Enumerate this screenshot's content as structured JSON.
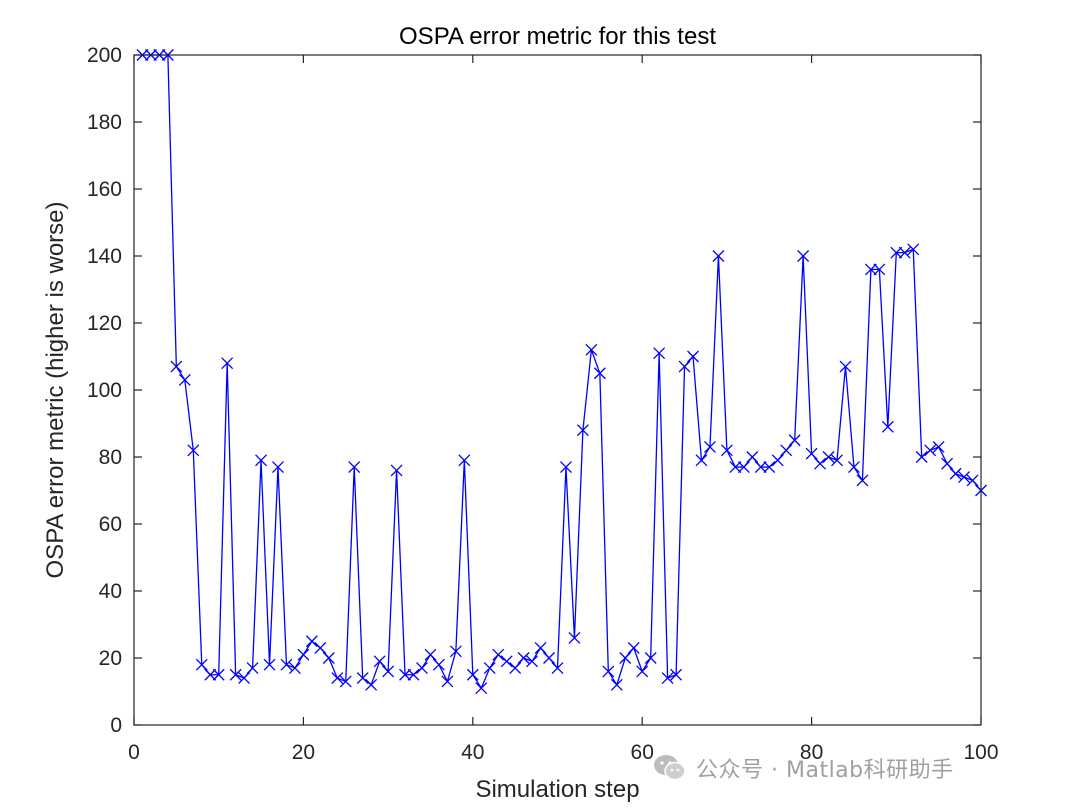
{
  "chart_data": {
    "type": "line",
    "title": "OSPA error metric for this test",
    "xlabel": "Simulation step",
    "ylabel": "OSPA error metric (higher is worse)",
    "xlim": [
      0,
      100
    ],
    "ylim": [
      0,
      200
    ],
    "xticks": [
      0,
      20,
      40,
      60,
      80,
      100
    ],
    "yticks": [
      0,
      20,
      40,
      60,
      80,
      100,
      120,
      140,
      160,
      180,
      200
    ],
    "grid": false,
    "marker": "x",
    "series": [
      {
        "name": "OSPA",
        "color": "#0000ff",
        "x": [
          1,
          2,
          3,
          4,
          5,
          6,
          7,
          8,
          9,
          10,
          11,
          12,
          13,
          14,
          15,
          16,
          17,
          18,
          19,
          20,
          21,
          22,
          23,
          24,
          25,
          26,
          27,
          28,
          29,
          30,
          31,
          32,
          33,
          34,
          35,
          36,
          37,
          38,
          39,
          40,
          41,
          42,
          43,
          44,
          45,
          46,
          47,
          48,
          49,
          50,
          51,
          52,
          53,
          54,
          55,
          56,
          57,
          58,
          59,
          60,
          61,
          62,
          63,
          64,
          65,
          66,
          67,
          68,
          69,
          70,
          71,
          72,
          73,
          74,
          75,
          76,
          77,
          78,
          79,
          80,
          81,
          82,
          83,
          84,
          85,
          86,
          87,
          88,
          89,
          90,
          91,
          92,
          93,
          94,
          95,
          96,
          97,
          98,
          99,
          100
        ],
        "values": [
          200,
          200,
          200,
          200,
          107,
          103,
          82,
          18,
          15,
          15,
          108,
          15,
          14,
          17,
          79,
          18,
          77,
          18,
          17,
          21,
          25,
          23,
          20,
          14,
          13,
          77,
          14,
          12,
          19,
          16,
          76,
          15,
          15,
          17,
          21,
          18,
          13,
          22,
          79,
          15,
          11,
          17,
          21,
          19,
          17,
          20,
          19,
          23,
          20,
          17,
          77,
          26,
          88,
          112,
          105,
          16,
          12,
          20,
          23,
          16,
          20,
          111,
          14,
          15,
          107,
          110,
          79,
          83,
          140,
          82,
          77,
          77,
          80,
          77,
          77,
          79,
          82,
          85,
          140,
          81,
          78,
          80,
          79,
          107,
          77,
          73,
          136,
          136,
          89,
          141,
          141,
          142,
          80,
          82,
          83,
          78,
          75,
          74,
          73,
          70
        ]
      }
    ]
  },
  "watermark": {
    "text": "公众号 · Matlab科研助手",
    "icon": "wechat-icon"
  }
}
